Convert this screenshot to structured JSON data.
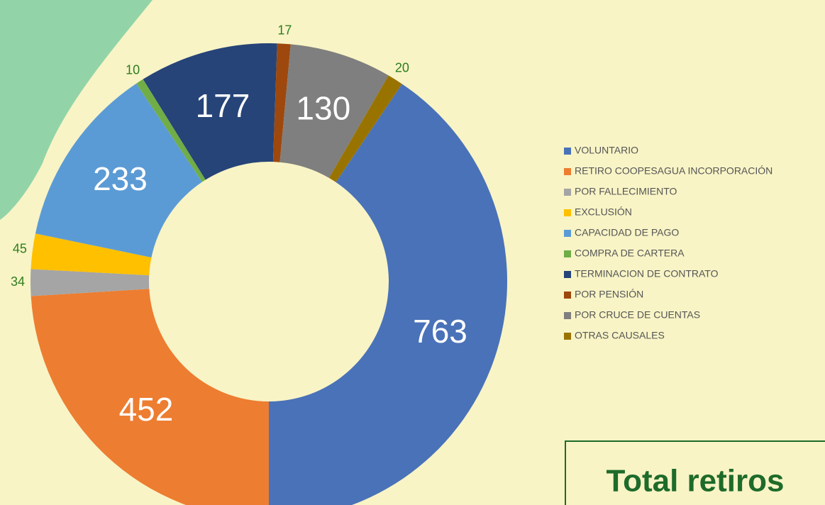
{
  "chart_data": {
    "type": "donut",
    "categories": [
      "VOLUNTARIO",
      "RETIRO COOPESAGUA INCORPORACIÓN",
      "POR FALLECIMIENTO",
      "EXCLUSIÓN",
      "CAPACIDAD DE PAGO",
      "COMPRA DE CARTERA",
      "TERMINACION DE CONTRATO",
      "POR PENSIÓN",
      "POR CRUCE DE CUENTAS",
      "OTRAS CAUSALES"
    ],
    "values": [
      763,
      452,
      34,
      45,
      233,
      10,
      177,
      17,
      130,
      20
    ],
    "colors": [
      "#4a72b8",
      "#ed7d31",
      "#a5a5a5",
      "#ffc000",
      "#5b9bd5",
      "#70ad47",
      "#264478",
      "#9e480e",
      "#7f7f7f",
      "#997300"
    ],
    "legend": "right",
    "total_label": "Total retiros"
  }
}
